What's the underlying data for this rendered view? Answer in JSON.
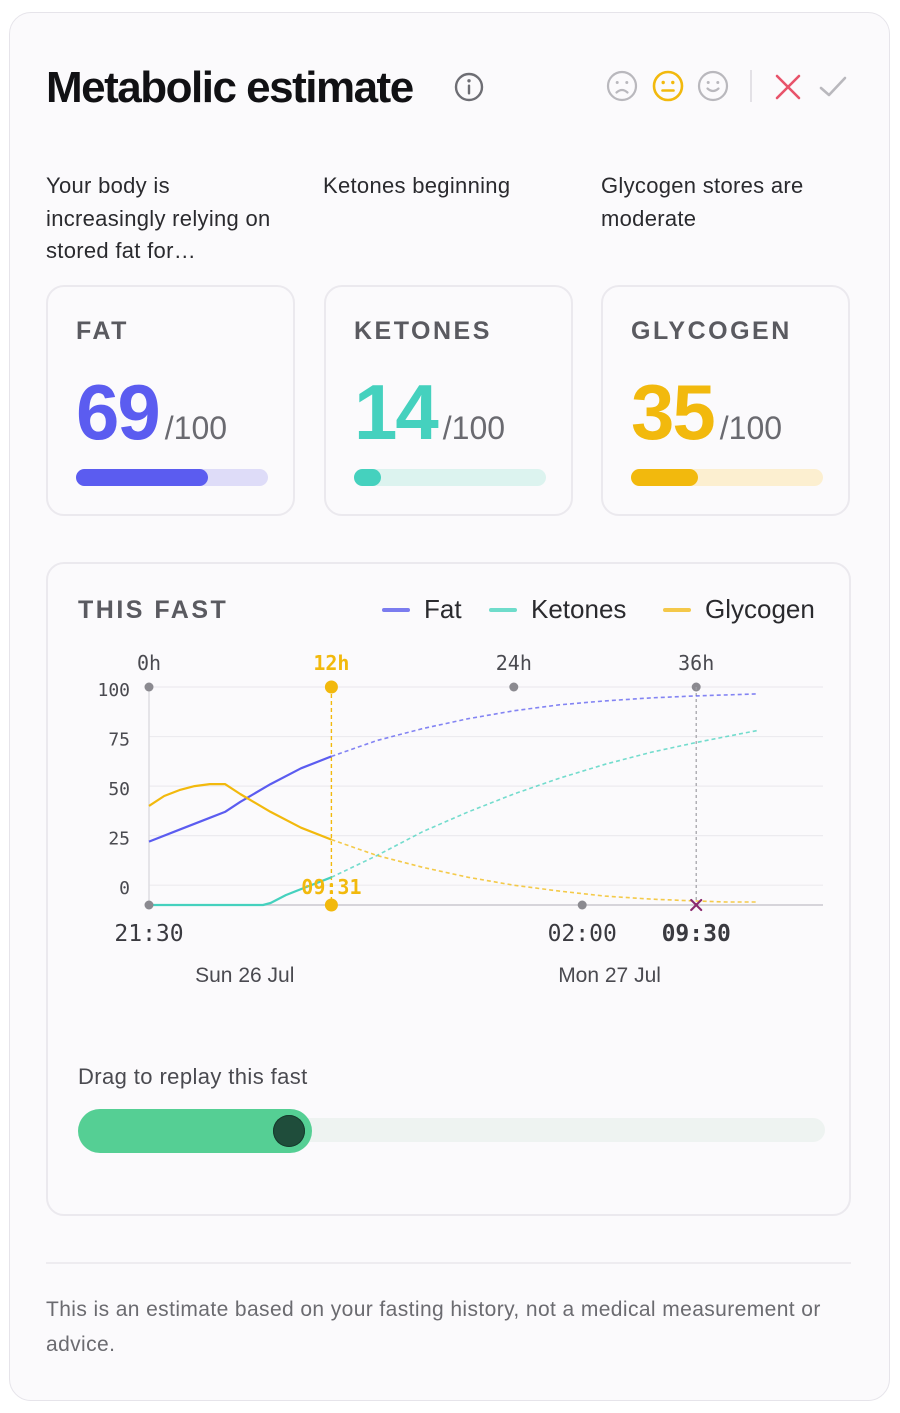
{
  "header": {
    "title": "Metabolic estimate",
    "icons": [
      "info-icon",
      "sad-face-icon",
      "neutral-face-icon",
      "happy-face-icon",
      "close-icon",
      "check-icon"
    ],
    "colors": {
      "selected_face": "#f2b90d",
      "close": "#e8536a",
      "check": "#b9b8bd"
    }
  },
  "descriptions": [
    "Your body is increasingly relying on stored fat for…",
    "Ketones beginning",
    "Glycogen stores are moderate"
  ],
  "metrics": [
    {
      "label": "FAT",
      "value": "69",
      "max": "/100",
      "level": 0.69,
      "color": "#5b5cf0",
      "track": "#dedcf8"
    },
    {
      "label": "KETONES",
      "value": "14",
      "max": "/100",
      "level": 0.14,
      "color": "#45d1be",
      "track": "#dcf3ef"
    },
    {
      "label": "GLYCOGEN",
      "value": "35",
      "max": "/100",
      "level": 0.35,
      "color": "#f2b90d",
      "track": "#fcefd0"
    }
  ],
  "fast": {
    "title": "THIS FAST",
    "legend": [
      {
        "name": "Fat",
        "color": "#7b7cef"
      },
      {
        "name": "Ketones",
        "color": "#6fdccb"
      },
      {
        "name": "Glycogen",
        "color": "#f4c84a"
      }
    ]
  },
  "chart_data": {
    "type": "line",
    "x_unit": "hours",
    "x_range": [
      0,
      42
    ],
    "ylim": [
      -10,
      100
    ],
    "y_ticks": [
      "100",
      "75",
      "50",
      "25",
      "0"
    ],
    "y_tick_values": [
      100,
      75,
      50,
      25,
      0
    ],
    "hour_ticks": [
      {
        "label": "0h",
        "hour": 0
      },
      {
        "label": "12h",
        "hour": 12,
        "highlight": true
      },
      {
        "label": "24h",
        "hour": 24
      },
      {
        "label": "36h",
        "hour": 36
      }
    ],
    "time_ticks": [
      {
        "label": "21:30",
        "hour": 0
      },
      {
        "label": "02:00",
        "hour": 28.5
      },
      {
        "label": "09:30",
        "hour": 36,
        "bold": true
      }
    ],
    "date_labels": [
      {
        "label": "Sun 26 Jul",
        "hour": 6.3
      },
      {
        "label": "Mon 27 Jul",
        "hour": 30.3
      }
    ],
    "current_marker": {
      "label": "09:31",
      "hour": 12
    },
    "end_marker_hour": 36,
    "series": [
      {
        "name": "Fat",
        "color": "#5b5cf0",
        "x": [
          0,
          2,
          4,
          5,
          6,
          8,
          10,
          12,
          15,
          18,
          21,
          24,
          27,
          30,
          33,
          36,
          38,
          40
        ],
        "y": [
          22,
          28,
          34,
          37,
          42,
          51,
          59,
          65,
          73,
          79,
          84,
          88,
          91,
          93,
          94.5,
          95.5,
          96,
          96.5
        ]
      },
      {
        "name": "Ketones",
        "color": "#45d1be",
        "x": [
          0,
          3,
          6,
          7.5,
          8,
          9,
          10,
          12,
          15,
          18,
          21,
          24,
          27,
          30,
          33,
          36,
          38,
          40
        ],
        "y": [
          -10,
          -10,
          -10,
          -10,
          -9,
          -5,
          -2,
          4,
          15,
          27,
          37,
          46,
          54,
          61,
          67,
          72,
          75,
          78
        ]
      },
      {
        "name": "Glycogen",
        "color": "#f2b90d",
        "x": [
          0,
          1,
          2,
          3,
          4,
          5,
          6,
          8,
          10,
          12,
          15,
          18,
          21,
          24,
          27,
          30,
          33,
          36,
          38,
          40
        ],
        "y": [
          40,
          45,
          48,
          50,
          51,
          51,
          46,
          37,
          29,
          23,
          15,
          9,
          4,
          0,
          -3,
          -5.5,
          -7,
          -8,
          -8.5,
          -8.5
        ]
      }
    ]
  },
  "slider": {
    "label": "Drag to replay this fast",
    "level": 0.313,
    "color": "#55cf94"
  },
  "footer": "This is an estimate based on your fasting history, not a medical measurement or advice."
}
